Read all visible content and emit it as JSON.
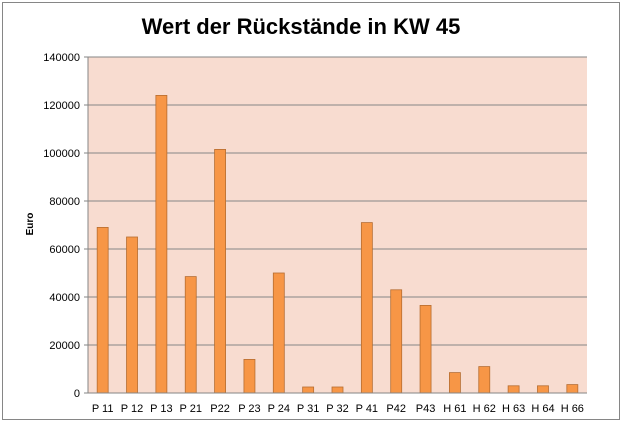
{
  "chart_data": {
    "type": "bar",
    "title": "Wert der Rückstände in KW 45",
    "xlabel": "",
    "ylabel": "Euro",
    "categories": [
      "P 11",
      "P 12",
      "P 13",
      "P 21",
      "P22",
      "P 23",
      "P 24",
      "P 31",
      "P 32",
      "P 41",
      "P42",
      "P43",
      "H 61",
      "H 62",
      "H 63",
      "H 64",
      "H 66"
    ],
    "values": [
      69000,
      65000,
      124000,
      48500,
      101500,
      14000,
      50000,
      2500,
      2500,
      71000,
      43000,
      36500,
      8500,
      11000,
      3000,
      3000,
      3500
    ],
    "ylim": [
      0,
      140000
    ],
    "yticks": [
      "0",
      "20000",
      "40000",
      "60000",
      "80000",
      "100000",
      "120000",
      "140000"
    ],
    "grid": true,
    "legend": "none",
    "colors": {
      "plot_background": "#f8dcd0",
      "bar_fill": "#f79646",
      "bar_stroke": "#b66d31",
      "gridline": "#868686"
    }
  }
}
